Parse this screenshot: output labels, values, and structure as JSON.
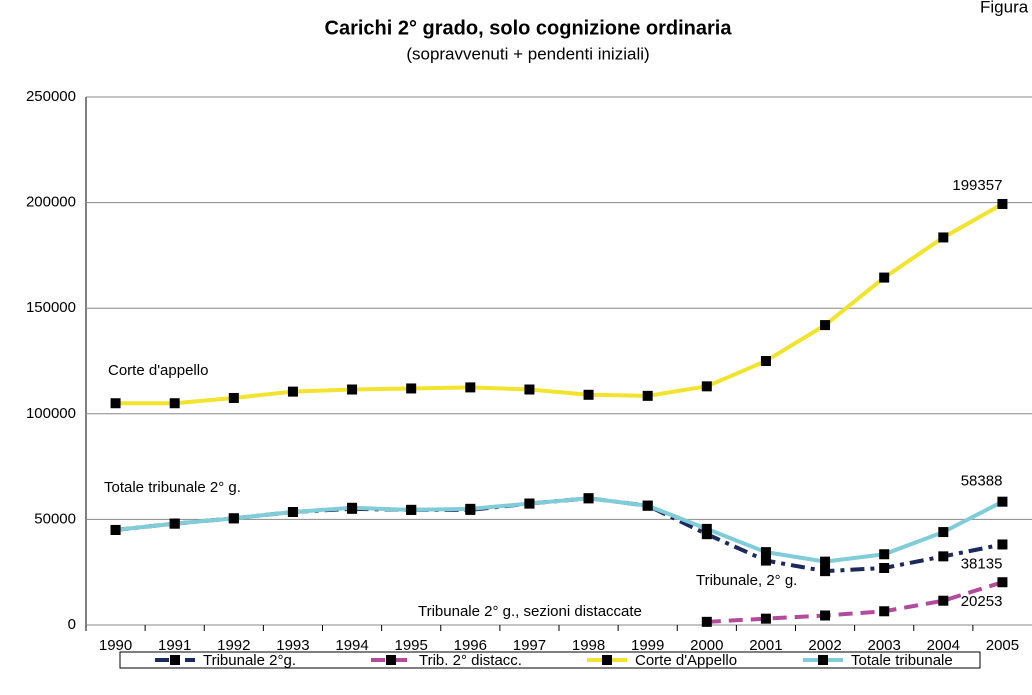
{
  "chart_data": {
    "type": "line",
    "title": "Carichi 2° grado, solo cognizione ordinaria",
    "subtitle": "(sopravvenuti + pendenti iniziali)",
    "corner_label": "Figura",
    "annotations": [
      "Corte d'appello",
      "Totale tribunale 2° g.",
      "Tribunale, 2° g.",
      "Tribunale 2° g., sezioni distaccate"
    ],
    "categories": [
      "1990",
      "1991",
      "1992",
      "1993",
      "1994",
      "1995",
      "1996",
      "1997",
      "1998",
      "1999",
      "2000",
      "2001",
      "2002",
      "2003",
      "2004",
      "2005"
    ],
    "ylim": [
      0,
      250000
    ],
    "yticks": [
      0,
      50000,
      100000,
      150000,
      200000,
      250000
    ],
    "grid": true,
    "legend": "bottom",
    "series": [
      {
        "name": "Tribunale 2°g.",
        "color": "#1b2a5c",
        "dash": "dashdot",
        "values": [
          45000,
          48000,
          50500,
          53500,
          55000,
          54500,
          54500,
          57500,
          60000,
          56500,
          43000,
          30500,
          25500,
          27000,
          32500,
          38135
        ]
      },
      {
        "name": "Trib. 2° distacc.",
        "color": "#b44a9c",
        "dash": "dashed",
        "values": [
          null,
          null,
          null,
          null,
          null,
          null,
          null,
          null,
          null,
          null,
          1500,
          3000,
          4500,
          6500,
          11500,
          20253
        ]
      },
      {
        "name": "Corte d'Appello",
        "color": "#f2e42c",
        "dash": "solid",
        "values": [
          105000,
          105000,
          107500,
          110500,
          111500,
          112000,
          112500,
          111500,
          109000,
          108500,
          113000,
          125000,
          142000,
          164500,
          183500,
          199357
        ]
      },
      {
        "name": "Totale tribunale",
        "color": "#80ccd8",
        "dash": "solid",
        "values": [
          45000,
          48000,
          50500,
          53500,
          55500,
          54500,
          55000,
          57500,
          60000,
          56500,
          45500,
          34500,
          30000,
          33500,
          44000,
          58388
        ]
      }
    ]
  }
}
